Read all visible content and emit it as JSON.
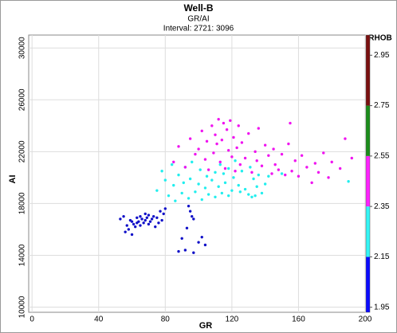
{
  "chart_data": {
    "type": "scatter",
    "title": "Well-B",
    "subtitle": "GR/AI",
    "annotation": "Interval: 2721: 3096",
    "x_label": "GR",
    "y_label": "AI",
    "xlim": [
      -2,
      200
    ],
    "xticks": [
      0,
      40,
      80,
      120,
      160,
      200
    ],
    "ylim": [
      9600,
      31000
    ],
    "yticks": [
      10000,
      14000,
      18000,
      22000,
      26000,
      30000
    ],
    "grid": true,
    "colorbar": {
      "label": "RHOB",
      "lim": [
        1.93,
        3.03
      ],
      "ticks": [
        1.95,
        2.15,
        2.35,
        2.55,
        2.75,
        2.95
      ],
      "colors": [
        "#0a0aff",
        "#33f5f5",
        "#ff22ff",
        "#1a8c1a",
        "#7a1010"
      ]
    },
    "series": [
      {
        "color": "#1010c8",
        "x": [
          53,
          55,
          56,
          57,
          58,
          59,
          60,
          60,
          61,
          62,
          63,
          63,
          64,
          65,
          65,
          66,
          67,
          68,
          68,
          69,
          70,
          70,
          71,
          72,
          73,
          74,
          75,
          76,
          77,
          78,
          79,
          80,
          88,
          90,
          92,
          94,
          95,
          96,
          97,
          100,
          102,
          104,
          93,
          97
        ],
        "values": [
          16800,
          17000,
          15800,
          16300,
          16000,
          16700,
          15600,
          16600,
          16400,
          16200,
          16900,
          16500,
          16600,
          16300,
          17000,
          16800,
          16500,
          16700,
          17200,
          16900,
          16400,
          17100,
          16600,
          16800,
          17000,
          16200,
          16900,
          16500,
          17400,
          16700,
          17200,
          17600,
          14300,
          15300,
          14400,
          17800,
          17400,
          17000,
          14200,
          15000,
          15400,
          14800,
          16100,
          16800
        ]
      },
      {
        "color": "#22eeee",
        "x": [
          75,
          78,
          80,
          82,
          84,
          85,
          86,
          88,
          90,
          91,
          92,
          94,
          95,
          96,
          98,
          100,
          101,
          102,
          104,
          105,
          106,
          108,
          110,
          110,
          112,
          113,
          114,
          115,
          116,
          118,
          118,
          120,
          121,
          122,
          124,
          125,
          126,
          128,
          130,
          131,
          132,
          133,
          134,
          135,
          136,
          138,
          140,
          142,
          150,
          190
        ],
        "values": [
          19000,
          20500,
          19800,
          18600,
          21000,
          19400,
          18200,
          20200,
          18800,
          19600,
          20800,
          18400,
          19900,
          21200,
          18900,
          19500,
          20600,
          18300,
          19200,
          20100,
          18700,
          19800,
          20400,
          18500,
          19300,
          21000,
          18800,
          20300,
          19600,
          18600,
          20700,
          19000,
          20000,
          21300,
          19400,
          18900,
          20500,
          19100,
          18700,
          20800,
          18500,
          19900,
          18600,
          19300,
          20200,
          18800,
          19500,
          20100,
          20300,
          19700
        ]
      },
      {
        "color": "#f014f0",
        "x": [
          85,
          88,
          92,
          95,
          98,
          100,
          102,
          104,
          105,
          106,
          108,
          109,
          110,
          111,
          112,
          113,
          114,
          115,
          116,
          117,
          118,
          119,
          120,
          121,
          122,
          123,
          124,
          125,
          126,
          128,
          130,
          132,
          134,
          135,
          136,
          138,
          140,
          142,
          144,
          145,
          146,
          148,
          150,
          152,
          154,
          155,
          156,
          158,
          160,
          162,
          165,
          168,
          170,
          172,
          175,
          178,
          180,
          185,
          188,
          192
        ],
        "values": [
          21200,
          22400,
          20800,
          23000,
          21800,
          22200,
          23600,
          21400,
          22800,
          20600,
          24000,
          21900,
          23300,
          22600,
          24500,
          21200,
          22900,
          24200,
          20700,
          23700,
          22100,
          24400,
          21600,
          23100,
          20500,
          22300,
          24000,
          21000,
          22700,
          21500,
          23400,
          20400,
          22000,
          21300,
          23800,
          20900,
          22500,
          21700,
          20300,
          22200,
          21000,
          20600,
          21800,
          20200,
          22600,
          24200,
          20500,
          21300,
          20100,
          21700,
          20800,
          19600,
          21100,
          20400,
          21900,
          20000,
          21200,
          20700,
          23000,
          21500
        ]
      }
    ]
  }
}
